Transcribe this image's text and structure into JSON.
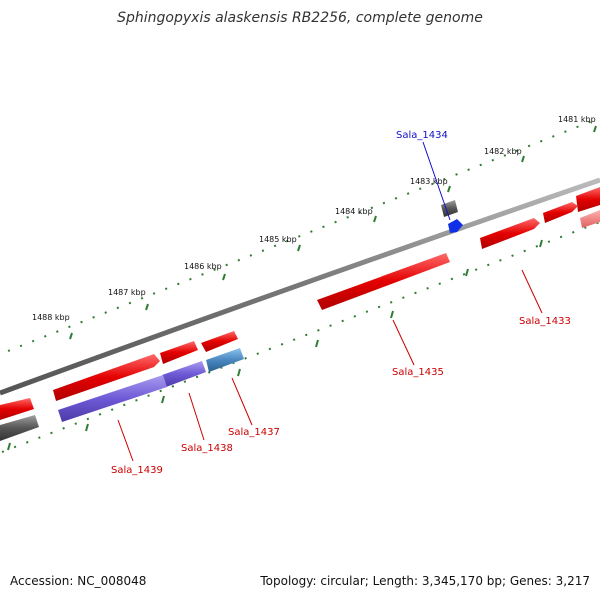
{
  "title": "Sphingopyxis alaskensis RB2256, complete genome",
  "footer": {
    "accession": "Accession: NC_008048",
    "summary": "Topology: circular; Length: 3,345,170 bp; Genes: 3,217"
  },
  "colors": {
    "backbone": "#888888",
    "tick": "#2e7d32",
    "forward_gene": "#ee1111",
    "reverse_gene": "#6a5acd",
    "rna_gene": "#4a88c0",
    "pseudo_gene": "#666666",
    "highlight_label": "#1010cc",
    "gene_label": "#cc0000"
  },
  "ticks_outer": [
    "1481 kbp",
    "1482 kbp",
    "1483 kbp",
    "1484 kbp",
    "1485 kbp",
    "1486 kbp",
    "1487 kbp",
    "1488 kbp"
  ],
  "genes": [
    {
      "id": "g1433",
      "label": "Sala_1433",
      "strand": "forward"
    },
    {
      "id": "g1434",
      "label": "Sala_1434",
      "strand": "highlight"
    },
    {
      "id": "g1435",
      "label": "Sala_1435",
      "strand": "forward"
    },
    {
      "id": "g1437",
      "label": "Sala_1437",
      "strand": "rna"
    },
    {
      "id": "g1438",
      "label": "Sala_1438",
      "strand": "reverse"
    },
    {
      "id": "g1439",
      "label": "Sala_1439",
      "strand": "reverse"
    }
  ]
}
